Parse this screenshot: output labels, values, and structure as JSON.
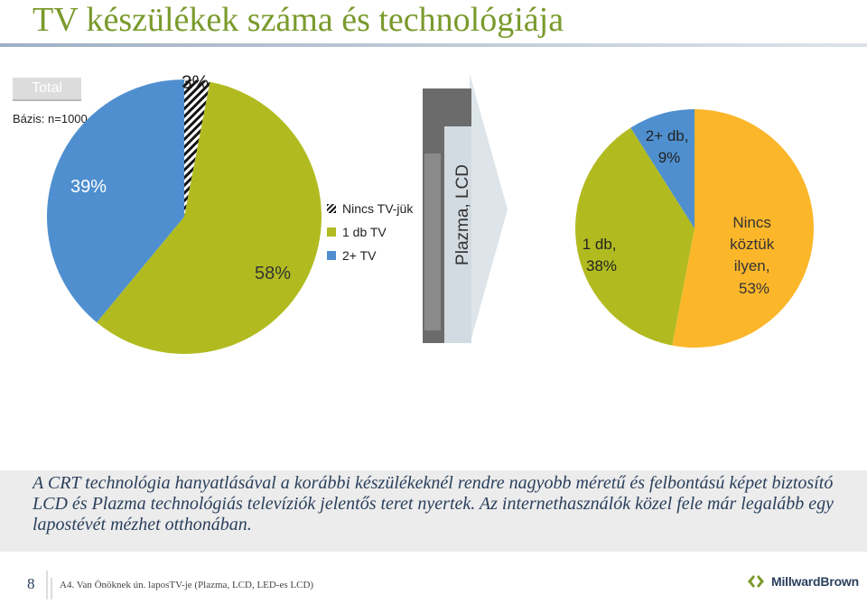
{
  "page": {
    "title": "TV készülékek száma és technológiája",
    "total_label": "Total",
    "base": "Bázis: n=1000",
    "arrow_label": "Plazma, LCD",
    "description": "A CRT technológia hanyatlásával a korábbi készülékeknél rendre nagyobb méretű és felbontású képet biztosító LCD és Plazma technológiás televíziók jelentős teret nyertek. Az internethasználók közel fele már legalább egy lapostévét mézhet otthonában.",
    "page_number": "8",
    "footer_note": "A4. Van Önöknek ún. laposTV-je (Plazma, LCD, LED-es LCD)",
    "logo_text": "MillwardBrown"
  },
  "colors": {
    "title": "#7a9a2c",
    "green": "#b1bb20",
    "blue": "#4f8fcf",
    "orange": "#fbb62a",
    "text_blue": "#2a3f5c"
  },
  "chart_data": [
    {
      "type": "pie",
      "categories": [
        "Nincs TV-jük",
        "1 db TV",
        "2+ TV"
      ],
      "values": [
        3,
        58,
        39
      ],
      "data_labels": [
        "3%",
        "58%",
        "39%"
      ],
      "legend": [
        "Nincs TV-jük",
        "1 db TV",
        "2+ TV"
      ],
      "legend_position": "right"
    },
    {
      "type": "pie",
      "categories": [
        "Nincs köztük ilyen",
        "1 db",
        "2+ db"
      ],
      "values": [
        53,
        38,
        9
      ],
      "data_labels": [
        "Nincs köztük ilyen, 53%",
        "1 db, 38%",
        "2+ db, 9%"
      ]
    }
  ]
}
